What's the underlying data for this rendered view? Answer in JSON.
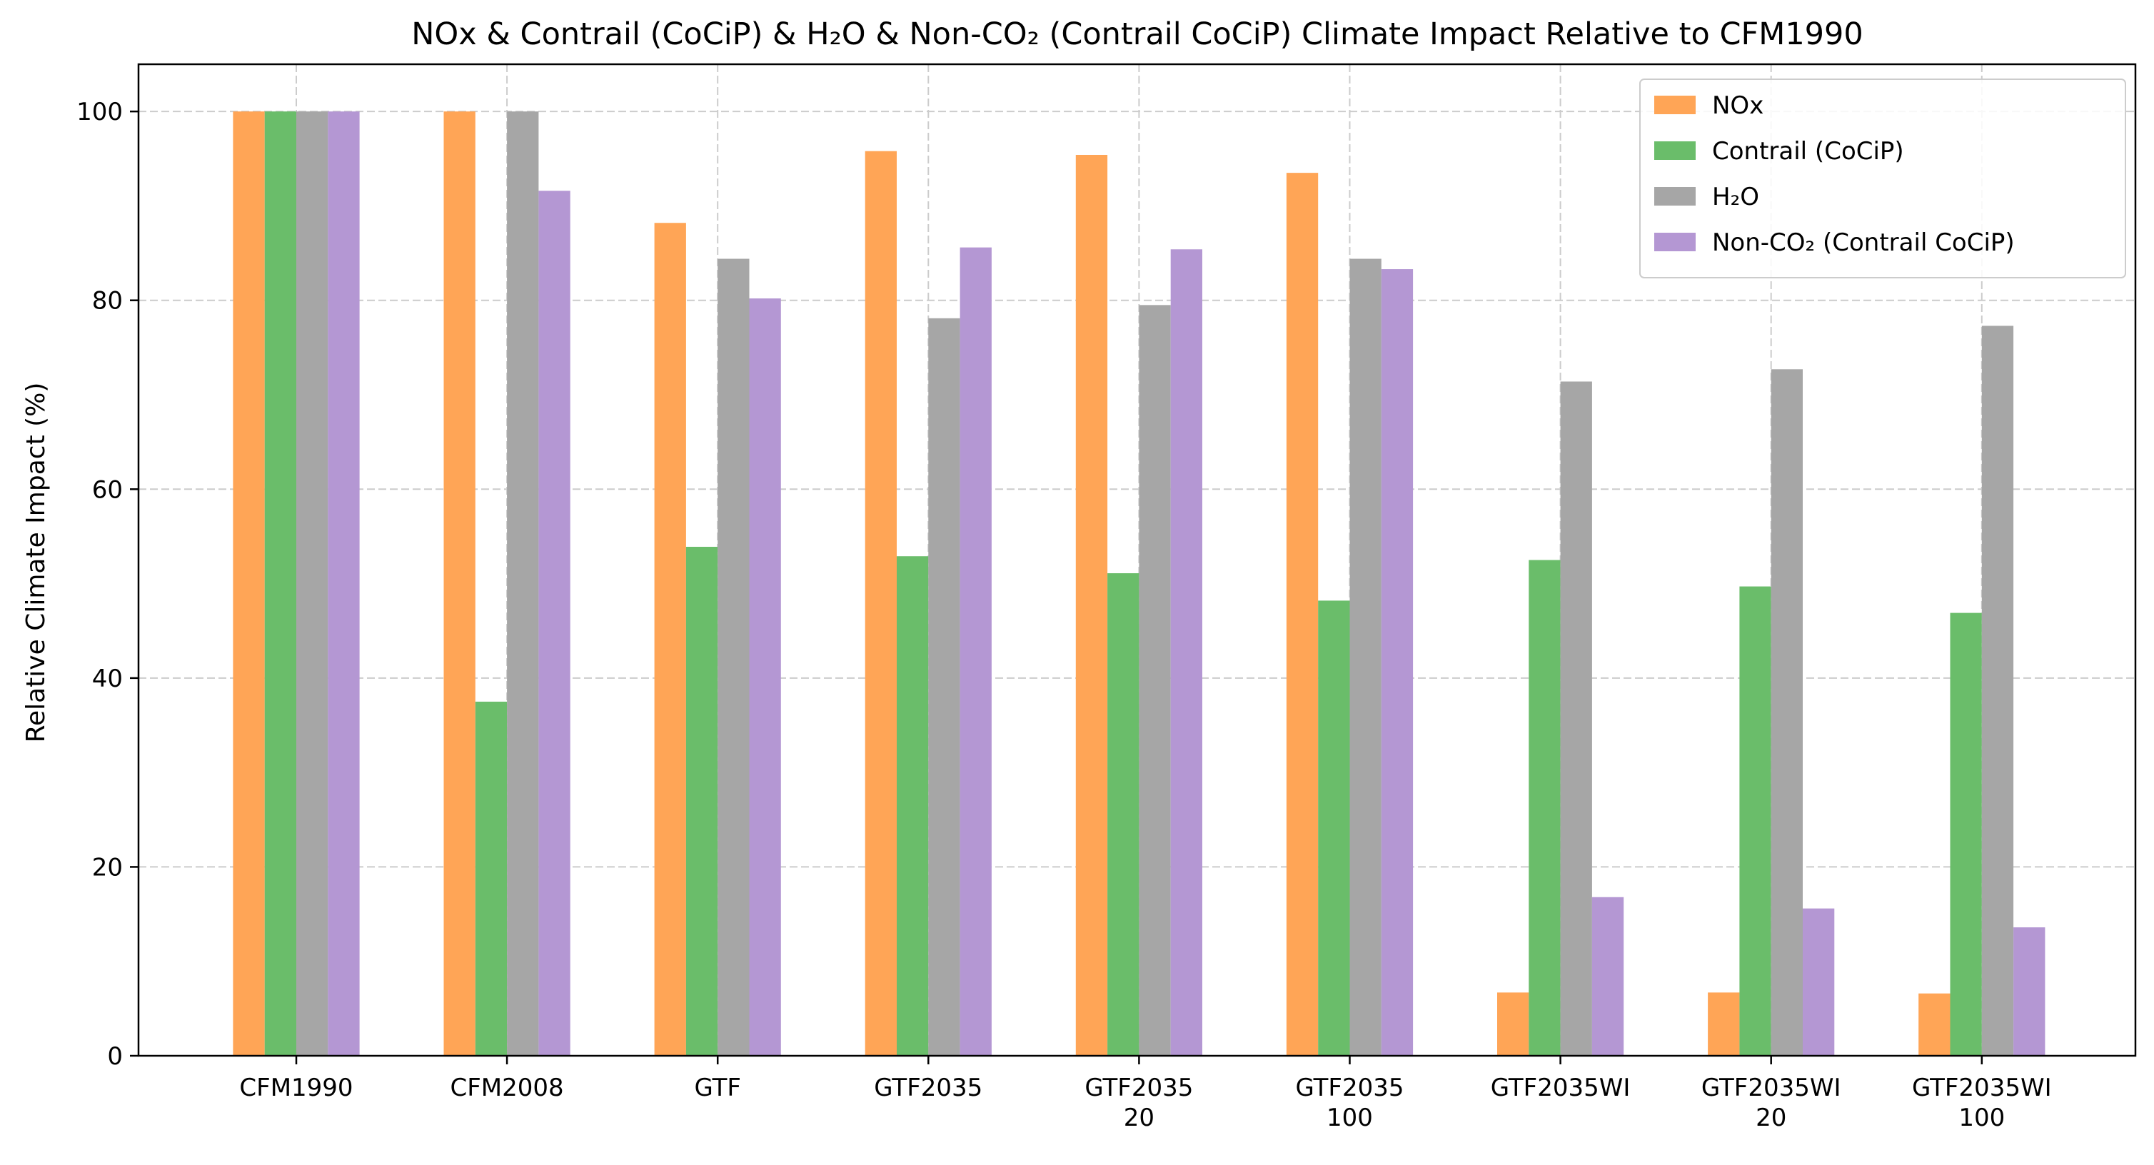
{
  "chart_data": {
    "type": "bar",
    "title": "NOx & Contrail (CoCiP) & H₂O & Non-CO₂ (Contrail CoCiP) Climate Impact Relative to CFM1990",
    "xlabel": "",
    "ylabel": "Relative Climate Impact (%)",
    "ylim": [
      0,
      105
    ],
    "yticks": [
      0,
      20,
      40,
      60,
      80,
      100
    ],
    "grid": true,
    "legend_position": "top-right",
    "categories": [
      [
        "CFM1990"
      ],
      [
        "CFM2008"
      ],
      [
        "GTF"
      ],
      [
        "GTF2035"
      ],
      [
        "GTF2035",
        "20"
      ],
      [
        "GTF2035",
        "100"
      ],
      [
        "GTF2035WI"
      ],
      [
        "GTF2035WI",
        "20"
      ],
      [
        "GTF2035WI",
        "100"
      ]
    ],
    "series": [
      {
        "name": "NOx",
        "color": "#ffa556",
        "values": [
          100,
          100,
          88.2,
          95.8,
          95.4,
          93.5,
          6.7,
          6.7,
          6.6
        ]
      },
      {
        "name": "Contrail (CoCiP)",
        "color": "#6abd6a",
        "values": [
          100,
          37.5,
          53.9,
          52.9,
          51.1,
          48.2,
          52.5,
          49.7,
          46.9
        ]
      },
      {
        "name": "H₂O",
        "color": "#a6a6a6",
        "values": [
          100,
          100,
          84.4,
          78.1,
          79.5,
          84.4,
          71.4,
          72.7,
          77.3
        ]
      },
      {
        "name": "Non-CO₂ (Contrail CoCiP)",
        "color": "#b497d3",
        "values": [
          100,
          91.6,
          80.2,
          85.6,
          85.4,
          83.3,
          16.8,
          15.6,
          13.6
        ]
      }
    ]
  }
}
